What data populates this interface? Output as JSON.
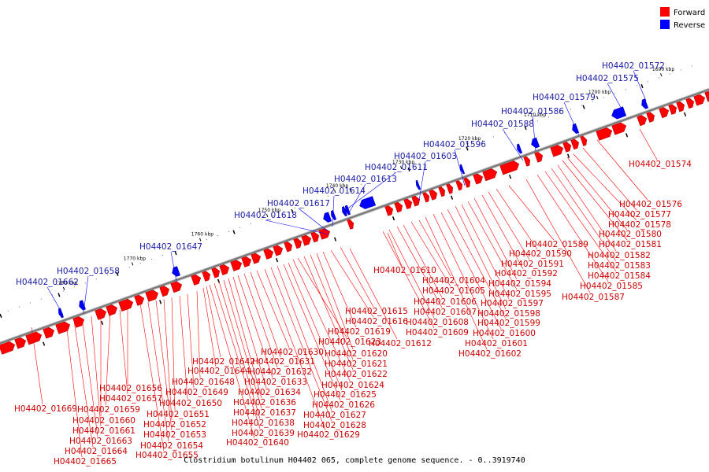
{
  "colors": {
    "forward": "#ff0000",
    "forward_dark": "#b30000",
    "reverse": "#0000ff",
    "reverse_dark": "#0000aa",
    "label_forward": "#cc0000",
    "label_reverse": "#1a1aa6",
    "backbone": "#777777"
  },
  "legend": {
    "forward": "Forward",
    "reverse": "Reverse"
  },
  "caption": "Clostridium botulinum H04402 065, complete genome sequence. - 0..3919740",
  "ticks": [
    {
      "kbp": 1690,
      "label": "1690 kbp"
    },
    {
      "kbp": 1700,
      "label": "1700 kbp"
    },
    {
      "kbp": 1710,
      "label": "1710 kbp"
    },
    {
      "kbp": 1720,
      "label": "1720 kbp"
    },
    {
      "kbp": 1730,
      "label": "1730 kbp"
    },
    {
      "kbp": 1740,
      "label": "1740 kbp"
    },
    {
      "kbp": 1750,
      "label": "1750 kbp"
    },
    {
      "kbp": 1760,
      "label": "1760 kbp"
    },
    {
      "kbp": 1770,
      "label": "1770 kbp"
    },
    {
      "kbp": 1780,
      "label": "1780 kbp"
    }
  ],
  "reverse_labels": [
    "H04402_01572",
    "H04402_01575",
    "H04402_01579",
    "H04402_01586",
    "H04402_01588",
    "H04402_01596",
    "H04402_01603",
    "H04402_01611",
    "H04402_01613",
    "H04402_01614",
    "H04402_01617",
    "H04402_01618",
    "H04402_01647",
    "H04402_01658",
    "H04402_01662"
  ],
  "forward_labels": [
    "H04402_01574",
    "H04402_01576",
    "H04402_01577",
    "H04402_01578",
    "H04402_01580",
    "H04402_01581",
    "H04402_01582",
    "H04402_01583",
    "H04402_01584",
    "H04402_01585",
    "H04402_01587",
    "H04402_01589",
    "H04402_01590",
    "H04402_01591",
    "H04402_01592",
    "H04402_01594",
    "H04402_01595",
    "H04402_01597",
    "H04402_01598",
    "H04402_01599",
    "H04402_01600",
    "H04402_01601",
    "H04402_01602",
    "H04402_01604",
    "H04402_01605",
    "H04402_01606",
    "H04402_01607",
    "H04402_01608",
    "H04402_01609",
    "H04402_01610",
    "H04402_01612",
    "H04402_01615",
    "H04402_01616",
    "H04402_01619",
    "H04402_01620",
    "H04402_01621",
    "H04402_01622",
    "H04402_01623",
    "H04402_01624",
    "H04402_01625",
    "H04402_01626",
    "H04402_01627",
    "H04402_01628",
    "H04402_01629",
    "H04402_01630",
    "H04402_01631",
    "H04402_01632",
    "H04402_01633",
    "H04402_01634",
    "H04402_01636",
    "H04402_01637",
    "H04402_01638",
    "H04402_01639",
    "H04402_01640",
    "H04402_01642",
    "H04402_01644",
    "H04402_01648",
    "H04402_01649",
    "H04402_01650",
    "H04402_01651",
    "H04402_01652",
    "H04402_01653",
    "H04402_01654",
    "H04402_01655",
    "H04402_01656",
    "H04402_01657",
    "H04402_01659",
    "H04402_01660",
    "H04402_01661",
    "H04402_01663",
    "H04402_01664",
    "H04402_01665",
    "H04402_01669"
  ]
}
